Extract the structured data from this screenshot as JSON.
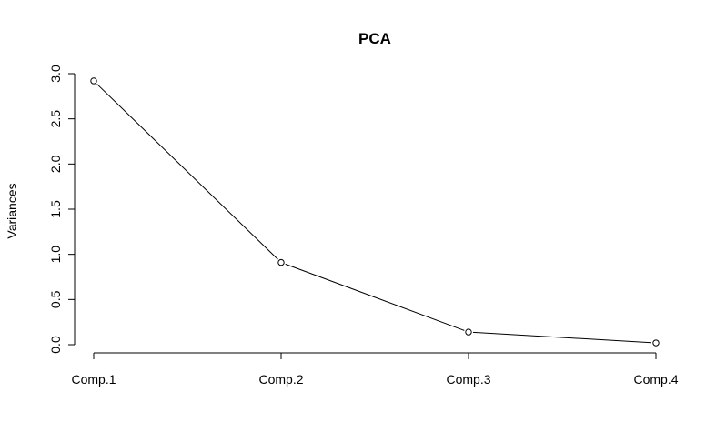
{
  "chart_data": {
    "type": "line",
    "title": "PCA",
    "xlabel": "",
    "ylabel": "Variances",
    "categories": [
      "Comp.1",
      "Comp.2",
      "Comp.3",
      "Comp.4"
    ],
    "values": [
      2.92,
      0.91,
      0.14,
      0.02
    ],
    "ylim": [
      0,
      3.0
    ],
    "y_ticks": [
      "0.0",
      "0.5",
      "1.0",
      "1.5",
      "2.0",
      "2.5",
      "3.0"
    ],
    "grid": false,
    "legend": "none",
    "marker": "open-circle",
    "line_color": "#000000"
  }
}
